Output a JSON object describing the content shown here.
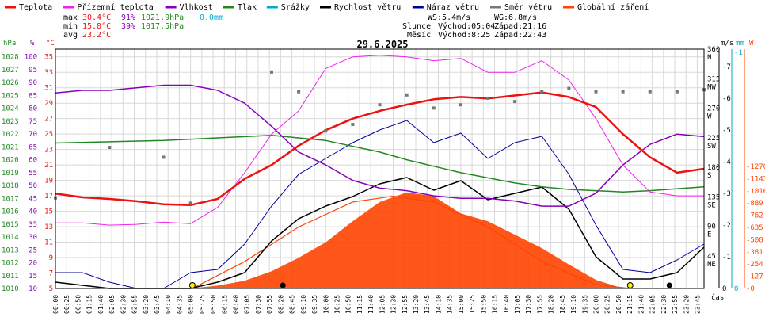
{
  "chart_title": "29.6.2025",
  "legend": [
    {
      "label": "Teplota",
      "color": "#ee1111"
    },
    {
      "label": "Přízemní teplota",
      "color": "#ee22ee"
    },
    {
      "label": "Vlhkost",
      "color": "#8800bb"
    },
    {
      "label": "Tlak",
      "color": "#228822"
    },
    {
      "label": "Srážky",
      "color": "#00aacc"
    },
    {
      "label": "Rychlost větru",
      "color": "#000000"
    },
    {
      "label": "Náraz větru",
      "color": "#000099"
    },
    {
      "label": "Směr větru",
      "color": "#777777"
    },
    {
      "label": "Globální záření",
      "color": "#ff4400"
    }
  ],
  "stats": {
    "max_label": "max",
    "min_label": "min",
    "avg_label": "avg",
    "max_temp": "30.4°C",
    "max_hum": "91%",
    "max_press": "1021.9hPa",
    "max_rain": "0.0mm",
    "min_temp": "15.8°C",
    "min_hum": "39%",
    "min_press": "1017.5hPa",
    "avg_temp": "23.2°C"
  },
  "info": {
    "ws": "WS:5.4m/s",
    "wg": "WG:6.8m/s",
    "sun_label": "Slunce",
    "sunrise": "Východ:05:04",
    "sunset": "Západ:21:16",
    "moon_label": "Měsíc",
    "moonrise": "Východ:8:25",
    "moonset": "Západ:22:43"
  },
  "axis_headers": {
    "hpa": "hPa",
    "pct": "%",
    "degc": "°C",
    "ms": "m/s",
    "mm": "mm",
    "w": "W",
    "time": "čas"
  },
  "axes": {
    "pressure_ticks": [
      "1010",
      "1011",
      "1012",
      "1013",
      "1014",
      "1015",
      "1016",
      "1017",
      "1018",
      "1019",
      "1020",
      "1021",
      "1022",
      "1023",
      "1024",
      "1025",
      "1026",
      "1027",
      "1028"
    ],
    "humidity_ticks": [
      "10",
      "15",
      "20",
      "25",
      "30",
      "35",
      "40",
      "45",
      "50",
      "55",
      "60",
      "65",
      "70",
      "75",
      "80",
      "85",
      "90",
      "95",
      "100"
    ],
    "temp_ticks": [
      "5",
      "7",
      "9",
      "11",
      "13",
      "15",
      "17",
      "19",
      "21",
      "23",
      "25",
      "27",
      "29",
      "31",
      "33",
      "35"
    ],
    "direction_ticks": [
      "NE 45",
      "E 90",
      "SE 135",
      "S 180",
      "SW 225",
      "W 270",
      "NW 315",
      "N 360"
    ],
    "wind_ticks": [
      "0",
      "1",
      "2",
      "3",
      "4",
      "5",
      "6",
      "7"
    ],
    "rain_ticks": [
      "0",
      "-1"
    ],
    "radiation_ticks": [
      "0",
      "127",
      "254",
      "381",
      "508",
      "635",
      "762",
      "889",
      "1016",
      "1143",
      "1270"
    ],
    "time_ticks": [
      "00:00",
      "00:25",
      "00:50",
      "01:15",
      "01:40",
      "02:05",
      "02:30",
      "02:55",
      "03:20",
      "03:45",
      "04:10",
      "04:35",
      "05:00",
      "05:25",
      "05:50",
      "06:15",
      "06:40",
      "07:05",
      "07:30",
      "07:55",
      "08:20",
      "08:45",
      "09:10",
      "09:35",
      "10:00",
      "10:25",
      "10:50",
      "11:15",
      "11:40",
      "12:05",
      "12:30",
      "12:55",
      "13:20",
      "13:45",
      "14:10",
      "14:35",
      "15:00",
      "15:25",
      "15:50",
      "16:15",
      "16:40",
      "17:05",
      "17:30",
      "17:55",
      "18:20",
      "18:45",
      "19:10",
      "19:35",
      "20:00",
      "20:25",
      "20:50",
      "21:15",
      "21:40",
      "22:05",
      "22:30",
      "22:55",
      "23:20",
      "23:45"
    ]
  },
  "chart_data": {
    "type": "line",
    "x_unit": "hour of day",
    "xlim": [
      0,
      24
    ],
    "series": [
      {
        "name": "Teplota",
        "unit": "°C",
        "color": "#ee1111",
        "x": [
          0,
          1,
          2,
          3,
          4,
          5,
          6,
          7,
          8,
          9,
          10,
          11,
          12,
          13,
          14,
          15,
          16,
          17,
          18,
          19,
          20,
          21,
          22,
          23,
          24
        ],
        "values": [
          17.3,
          16.8,
          16.6,
          16.3,
          15.9,
          15.8,
          16.6,
          19.2,
          21.0,
          23.5,
          25.5,
          27.0,
          28.0,
          28.8,
          29.5,
          29.8,
          29.6,
          30.0,
          30.4,
          29.8,
          28.5,
          25.0,
          22.0,
          20.0,
          20.5
        ]
      },
      {
        "name": "Přízemní teplota",
        "unit": "°C",
        "color": "#ee22ee",
        "x": [
          0,
          1,
          2,
          3,
          4,
          5,
          6,
          7,
          8,
          9,
          10,
          11,
          12,
          13,
          14,
          15,
          16,
          17,
          18,
          19,
          20,
          21,
          22,
          23,
          24
        ],
        "values": [
          13.5,
          13.5,
          13.2,
          13.3,
          13.6,
          13.4,
          15.5,
          20.0,
          25.0,
          28.0,
          33.5,
          35.0,
          35.2,
          35.0,
          34.5,
          34.8,
          33.0,
          33.0,
          34.5,
          32.0,
          27.0,
          21.0,
          17.5,
          17.0,
          17.0
        ]
      },
      {
        "name": "Vlhkost",
        "unit": "%",
        "color": "#8800bb",
        "x": [
          0,
          1,
          2,
          3,
          4,
          5,
          6,
          7,
          8,
          9,
          10,
          11,
          12,
          13,
          14,
          15,
          16,
          17,
          18,
          19,
          20,
          21,
          22,
          23,
          24
        ],
        "values": [
          86,
          87,
          87,
          88,
          89,
          89,
          87,
          82,
          73,
          63,
          58,
          52,
          49,
          48,
          46,
          45,
          45,
          44,
          42,
          42,
          47,
          58,
          66,
          70,
          69
        ]
      },
      {
        "name": "Tlak",
        "unit": "hPa",
        "color": "#228822",
        "x": [
          0,
          2,
          4,
          6,
          8,
          10,
          12,
          13,
          14,
          15,
          16,
          17,
          18,
          19,
          20,
          21,
          22,
          24
        ],
        "values": [
          1021.3,
          1021.4,
          1021.5,
          1021.7,
          1021.9,
          1021.5,
          1020.6,
          1020.0,
          1019.5,
          1019.0,
          1018.6,
          1018.2,
          1017.9,
          1017.7,
          1017.6,
          1017.5,
          1017.6,
          1017.9
        ]
      },
      {
        "name": "Srážky",
        "unit": "mm",
        "color": "#00aacc",
        "x": [
          0,
          24
        ],
        "values": [
          0,
          0
        ]
      },
      {
        "name": "Rychlost větru",
        "unit": "m/s",
        "color": "#000000",
        "x": [
          0,
          1,
          2,
          3,
          4,
          5,
          6,
          7,
          8,
          9,
          10,
          11,
          12,
          13,
          14,
          15,
          16,
          17,
          18,
          19,
          20,
          21,
          22,
          23,
          24
        ],
        "values": [
          0.2,
          0.1,
          0,
          0,
          0,
          0,
          0.2,
          0.5,
          1.5,
          2.2,
          2.6,
          2.9,
          3.3,
          3.5,
          3.1,
          3.4,
          2.8,
          3.0,
          3.2,
          2.5,
          1.0,
          0.3,
          0.3,
          0.5,
          1.3
        ]
      },
      {
        "name": "Náraz větru",
        "unit": "m/s",
        "color": "#000099",
        "x": [
          0,
          1,
          2,
          3,
          4,
          5,
          6,
          7,
          8,
          9,
          10,
          11,
          12,
          13,
          14,
          15,
          16,
          17,
          18,
          19,
          20,
          21,
          22,
          23,
          24
        ],
        "values": [
          0.5,
          0.5,
          0.2,
          0,
          0,
          0.5,
          0.6,
          1.4,
          2.6,
          3.6,
          4.1,
          4.6,
          5.0,
          5.3,
          4.6,
          4.9,
          4.1,
          4.6,
          4.8,
          3.6,
          2.0,
          0.6,
          0.5,
          0.9,
          1.4
        ]
      },
      {
        "name": "Směr větru",
        "unit": "°",
        "color": "#777777",
        "x": [
          0,
          2,
          4,
          5,
          8,
          9,
          10,
          11,
          12,
          13,
          14,
          15,
          16,
          17,
          18,
          19,
          20,
          21,
          22,
          23,
          24
        ],
        "values": [
          138,
          215,
          200,
          130,
          330,
          300,
          240,
          250,
          280,
          295,
          275,
          280,
          290,
          285,
          300,
          305,
          300,
          300,
          300,
          300,
          303
        ]
      },
      {
        "name": "Globální záření",
        "unit": "W/m²",
        "color": "#ff4400",
        "x": [
          0,
          5,
          6,
          7,
          8,
          9,
          10,
          11,
          12,
          13,
          14,
          15,
          16,
          17,
          18,
          19,
          20,
          21,
          22,
          24
        ],
        "values": [
          0,
          0,
          30,
          80,
          180,
          320,
          480,
          700,
          900,
          1000,
          960,
          780,
          700,
          560,
          420,
          250,
          90,
          0,
          0,
          0
        ]
      },
      {
        "name": "Teoretické záření",
        "unit": "W/m²",
        "color": "#ff4400",
        "x": [
          5.07,
          7,
          9,
          11,
          12.5,
          14,
          16,
          18,
          20,
          21.27
        ],
        "values": [
          0,
          280,
          640,
          900,
          960,
          900,
          640,
          280,
          40,
          0
        ]
      }
    ]
  }
}
